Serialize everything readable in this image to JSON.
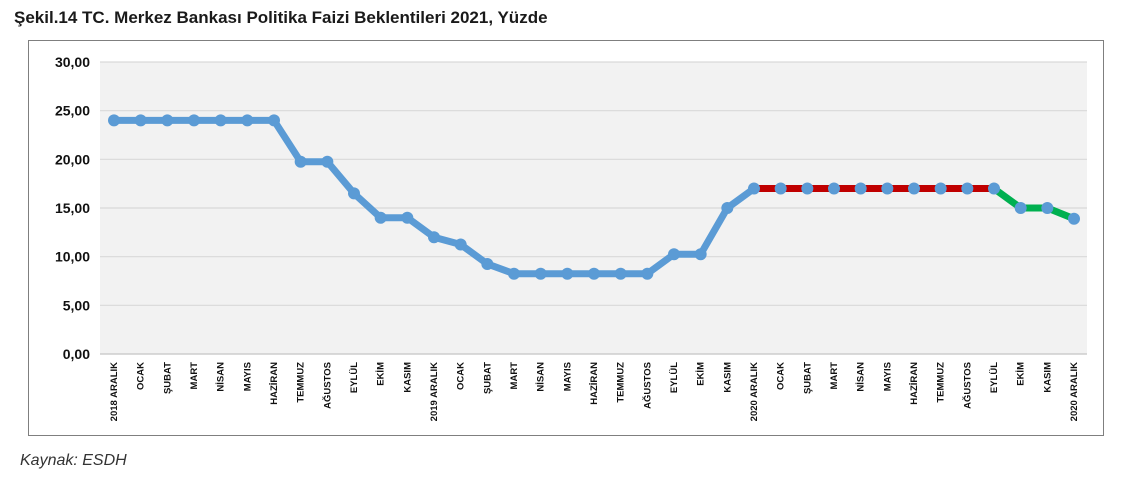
{
  "title": "Şekil.14 TC. Merkez Bankası Politika Faizi Beklentileri 2021, Yüzde",
  "source": "Kaynak: ESDH",
  "chart_data": {
    "type": "line",
    "ylim": [
      0,
      30
    ],
    "yticks": [
      "0,00",
      "5,00",
      "10,00",
      "15,00",
      "20,00",
      "25,00",
      "30,00"
    ],
    "ytick_values": [
      0,
      5,
      10,
      15,
      20,
      25,
      30
    ],
    "grid": true,
    "categories": [
      "2018 ARALIK",
      "OCAK",
      "ŞUBAT",
      "MART",
      "NİSAN",
      "MAYIS",
      "HAZİRAN",
      "TEMMUZ",
      "AĞUSTOS",
      "EYLÜL",
      "EKİM",
      "KASIM",
      "2019 ARALIK",
      "OCAK",
      "ŞUBAT",
      "MART",
      "NİSAN",
      "MAYIS",
      "HAZİRAN",
      "TEMMUZ",
      "AĞUSTOS",
      "EYLÜL",
      "EKİM",
      "KASIM",
      "2020 ARALIK",
      "OCAK",
      "ŞUBAT",
      "MART",
      "NİSAN",
      "MAYIS",
      "HAZİRAN",
      "TEMMUZ",
      "AĞUSTOS",
      "EYLÜL",
      "EKİM",
      "KASIM",
      "2020 ARALIK"
    ],
    "values": [
      24.0,
      24.0,
      24.0,
      24.0,
      24.0,
      24.0,
      24.0,
      19.75,
      19.75,
      16.5,
      14.0,
      14.0,
      12.0,
      11.25,
      9.25,
      8.25,
      8.25,
      8.25,
      8.25,
      8.25,
      8.25,
      10.25,
      10.25,
      15.0,
      17.0,
      17.0,
      17.0,
      17.0,
      17.0,
      17.0,
      17.0,
      17.0,
      17.0,
      17.0,
      15.0,
      15.0,
      13.9
    ],
    "segment_colors": [
      {
        "from": 0,
        "to": 24,
        "color": "#5b9bd5"
      },
      {
        "from": 24,
        "to": 33,
        "color": "#c00000"
      },
      {
        "from": 33,
        "to": 36,
        "color": "#00b050"
      }
    ],
    "marker_color": "#5b9bd5",
    "grid_color": "#d9d9d9",
    "plot_background": "#f2f2f2"
  }
}
